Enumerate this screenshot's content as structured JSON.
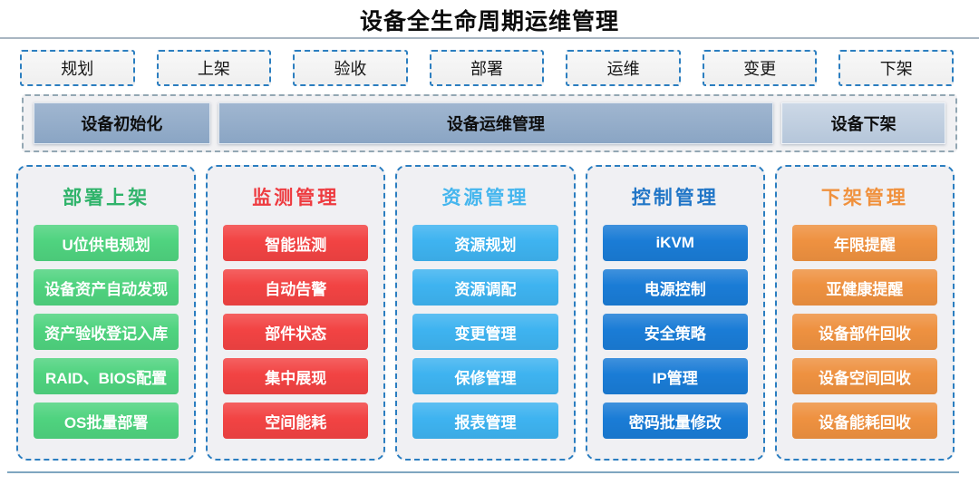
{
  "title": "设备全生命周期运维管理",
  "stages": [
    "规划",
    "上架",
    "验收",
    "部署",
    "运维",
    "变更",
    "下架"
  ],
  "phases": [
    {
      "label": "设备初始化"
    },
    {
      "label": "设备运维管理"
    },
    {
      "label": "设备下架"
    }
  ],
  "columns": [
    {
      "title": "部署上架",
      "title_color": "#2fb36a",
      "button_color": "#4fd37f",
      "items": [
        "U位供电规划",
        "设备资产自动发现",
        "资产验收登记入库",
        "RAID、BIOS配置",
        "OS批量部署"
      ]
    },
    {
      "title": "监测管理",
      "title_color": "#ee3b40",
      "button_color": "#f24343",
      "items": [
        "智能监测",
        "自动告警",
        "部件状态",
        "集中展现",
        "空间能耗"
      ]
    },
    {
      "title": "资源管理",
      "title_color": "#45b6ee",
      "button_color": "#3eb3f0",
      "items": [
        "资源规划",
        "资源调配",
        "变更管理",
        "保修管理",
        "报表管理"
      ]
    },
    {
      "title": "控制管理",
      "title_color": "#2176c7",
      "button_color": "#1a7cd6",
      "items": [
        "iKVM",
        "电源控制",
        "安全策略",
        "IP管理",
        "密码批量修改"
      ]
    },
    {
      "title": "下架管理",
      "title_color": "#f0913d",
      "button_color": "#ee9140",
      "items": [
        "年限提醒",
        "亚健康提醒",
        "设备部件回收",
        "设备空间回收",
        "设备能耗回收"
      ]
    }
  ],
  "colors": {
    "stage_border": "#2b7ec0",
    "phase_container_border": "#93a7b3",
    "phase_dark_top": "#a0b6d0",
    "phase_dark_bottom": "#8aa5c4",
    "phase_light_top": "#ccd8e6",
    "phase_light_bottom": "#b5c6da",
    "rule_top": "#a9b6c2",
    "rule_bottom": "#7fa6c0"
  }
}
